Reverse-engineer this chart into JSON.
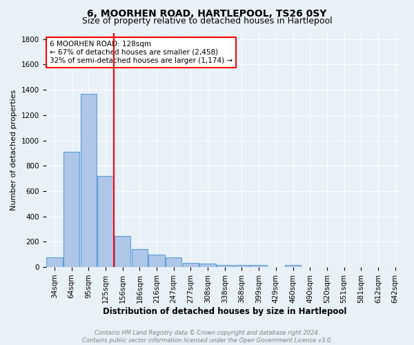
{
  "title": "6, MOORHEN ROAD, HARTLEPOOL, TS26 0SY",
  "subtitle": "Size of property relative to detached houses in Hartlepool",
  "xlabel": "Distribution of detached houses by size in Hartlepool",
  "ylabel": "Number of detached properties",
  "footer_line1": "Contains HM Land Registry data © Crown copyright and database right 2024.",
  "footer_line2": "Contains public sector information licensed under the Open Government Licence v3.0.",
  "bar_labels": [
    "34sqm",
    "64sqm",
    "95sqm",
    "125sqm",
    "156sqm",
    "186sqm",
    "216sqm",
    "247sqm",
    "277sqm",
    "308sqm",
    "338sqm",
    "368sqm",
    "399sqm",
    "429sqm",
    "460sqm",
    "490sqm",
    "520sqm",
    "551sqm",
    "581sqm",
    "612sqm",
    "642sqm"
  ],
  "bar_values": [
    75,
    910,
    1370,
    720,
    245,
    140,
    100,
    75,
    35,
    30,
    18,
    15,
    18,
    0,
    18,
    0,
    0,
    0,
    0,
    0,
    0
  ],
  "bar_color": "#aec6e8",
  "bar_edge_color": "#5a9fd4",
  "background_color": "#e8f0f8",
  "grid_color": "#ffffff",
  "vline_x": 3.5,
  "vline_color": "red",
  "annotation_text": "6 MOORHEN ROAD: 128sqm\n← 67% of detached houses are smaller (2,458)\n32% of semi-detached houses are larger (1,174) →",
  "annotation_box_color": "white",
  "annotation_box_edge_color": "red",
  "ylim": [
    0,
    1850
  ],
  "yticks": [
    0,
    200,
    400,
    600,
    800,
    1000,
    1200,
    1400,
    1600,
    1800
  ],
  "title_fontsize": 10,
  "subtitle_fontsize": 9,
  "xlabel_fontsize": 8.5,
  "ylabel_fontsize": 8,
  "tick_fontsize": 7.5,
  "annotation_fontsize": 7.5,
  "footer_fontsize": 6
}
